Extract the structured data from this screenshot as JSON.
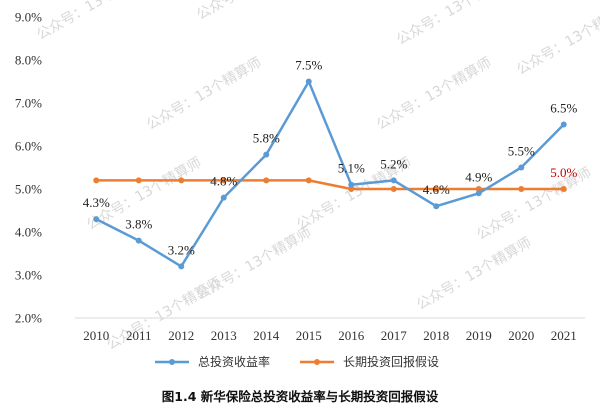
{
  "watermark": "公众号：13个精算师",
  "caption": "图1.4  新华保险总投资收益率与长期投资回报假设",
  "colors": {
    "series_blue": "#5b9bd5",
    "series_orange": "#ed7d31",
    "highlight_label": "#c00000",
    "axis": "#d9d9d9"
  },
  "chart_data": {
    "type": "line",
    "title": "",
    "xlabel": "",
    "ylabel": "",
    "x": [
      "2010",
      "2011",
      "2012",
      "2013",
      "2014",
      "2015",
      "2016",
      "2017",
      "2018",
      "2019",
      "2020",
      "2021"
    ],
    "ylim": [
      2.0,
      9.0
    ],
    "yticks": [
      "2.0%",
      "3.0%",
      "4.0%",
      "5.0%",
      "6.0%",
      "7.0%",
      "8.0%",
      "9.0%"
    ],
    "grid": false,
    "legend_position": "bottom",
    "series": [
      {
        "name": "总投资收益率",
        "color": "#5b9bd5",
        "values": [
          4.3,
          3.8,
          3.2,
          4.8,
          5.8,
          7.5,
          5.1,
          5.2,
          4.6,
          4.9,
          5.5,
          6.5
        ],
        "labels": [
          "4.3%",
          "3.8%",
          "3.2%",
          "4.8%",
          "5.8%",
          "7.5%",
          "5.1%",
          "5.2%",
          "4.6%",
          "4.9%",
          "5.5%",
          "6.5%"
        ]
      },
      {
        "name": "长期投资回报假设",
        "color": "#ed7d31",
        "values": [
          5.2,
          5.2,
          5.2,
          5.2,
          5.2,
          5.2,
          5.0,
          5.0,
          5.0,
          5.0,
          5.0,
          5.0
        ],
        "labels": [
          "",
          "",
          "",
          "",
          "",
          "",
          "",
          "",
          "",
          "",
          "",
          "5.0%"
        ]
      }
    ]
  }
}
